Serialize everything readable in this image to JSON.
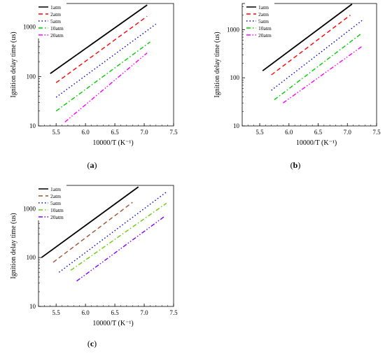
{
  "chart_data": [
    {
      "panel_label": "(a)",
      "type": "line",
      "xlabel": "10000/T (K⁻¹)",
      "ylabel": "Ignition delay time (us)",
      "xlim": [
        5.2,
        7.5
      ],
      "ylim": [
        10,
        3000
      ],
      "yscale": "log",
      "xticks": [
        "5.5",
        "6.0",
        "6.5",
        "7.0",
        "7.5"
      ],
      "yticks": [
        "10",
        "100",
        "1000"
      ],
      "legend_position": "top-left",
      "series": [
        {
          "name": "1atm",
          "color": "#000000",
          "dash": "solid",
          "x": [
            5.4,
            7.05
          ],
          "y": [
            115,
            2800
          ]
        },
        {
          "name": "2atm",
          "color": "#ff0000",
          "dash": "dash",
          "x": [
            5.5,
            7.05
          ],
          "y": [
            75,
            1650
          ]
        },
        {
          "name": "5atm",
          "color": "#0000cc",
          "dash": "dot",
          "x": [
            5.5,
            7.2
          ],
          "y": [
            38,
            1150
          ]
        },
        {
          "name": "10atm",
          "color": "#00cc00",
          "dash": "dashdot",
          "x": [
            5.5,
            7.1
          ],
          "y": [
            20,
            500
          ]
        },
        {
          "name": "20atm",
          "color": "#ff00ff",
          "dash": "dashdotdot",
          "x": [
            5.65,
            7.05
          ],
          "y": [
            12,
            300
          ]
        }
      ]
    },
    {
      "panel_label": "(b)",
      "type": "line",
      "xlabel": "10000/T (K⁻¹)",
      "ylabel": "Ignition delay time (us)",
      "xlim": [
        5.2,
        7.5
      ],
      "ylim": [
        10,
        3500
      ],
      "yscale": "log",
      "xticks": [
        "5.5",
        "6.0",
        "6.5",
        "7.0",
        "7.5"
      ],
      "yticks": [
        "10",
        "100",
        "1000"
      ],
      "legend_position": "top-right",
      "series": [
        {
          "name": "1atm",
          "color": "#000000",
          "dash": "solid",
          "x": [
            5.55,
            7.08
          ],
          "y": [
            140,
            3400
          ]
        },
        {
          "name": "2atm",
          "color": "#ff0000",
          "dash": "dash",
          "x": [
            5.7,
            7.05
          ],
          "y": [
            115,
            2000
          ]
        },
        {
          "name": "5atm",
          "color": "#0000cc",
          "dash": "dot",
          "x": [
            5.7,
            7.25
          ],
          "y": [
            55,
            1550
          ]
        },
        {
          "name": "10atm",
          "color": "#00cc00",
          "dash": "dashdot",
          "x": [
            5.75,
            7.25
          ],
          "y": [
            35,
            850
          ]
        },
        {
          "name": "20atm",
          "color": "#ff00ff",
          "dash": "dashdotdot",
          "x": [
            5.9,
            7.25
          ],
          "y": [
            30,
            450
          ]
        }
      ]
    },
    {
      "panel_label": "(c)",
      "type": "line",
      "xlabel": "10000/T (K⁻¹)",
      "ylabel": "Ignition delay time (us)",
      "xlim": [
        5.2,
        7.5
      ],
      "ylim": [
        10,
        3000
      ],
      "yscale": "log",
      "xticks": [
        "5.5",
        "6.0",
        "6.5",
        "7.0",
        "7.5"
      ],
      "yticks": [
        "10",
        "100",
        "1000"
      ],
      "legend_position": "top-left",
      "series": [
        {
          "name": "1atm",
          "color": "#000000",
          "dash": "solid",
          "x": [
            5.25,
            6.9
          ],
          "y": [
            100,
            2800
          ]
        },
        {
          "name": "2atm",
          "color": "#a0522d",
          "dash": "dash",
          "x": [
            5.45,
            6.8
          ],
          "y": [
            80,
            1350
          ]
        },
        {
          "name": "5atm",
          "color": "#0000cc",
          "dash": "dot",
          "x": [
            5.55,
            7.38
          ],
          "y": [
            50,
            2200
          ]
        },
        {
          "name": "10atm",
          "color": "#66cc00",
          "dash": "dashdot",
          "x": [
            5.75,
            7.38
          ],
          "y": [
            55,
            1300
          ]
        },
        {
          "name": "20atm",
          "color": "#8000ff",
          "dash": "dashdotdot",
          "x": [
            5.85,
            7.35
          ],
          "y": [
            33,
            700
          ]
        }
      ]
    }
  ]
}
